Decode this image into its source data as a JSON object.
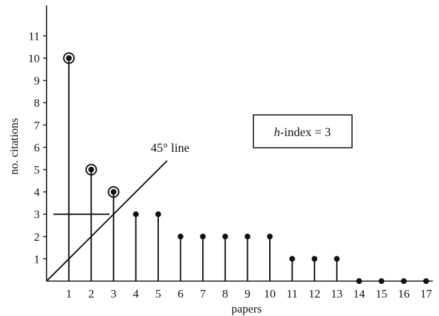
{
  "chart_data": {
    "type": "scatter",
    "title": "",
    "xlabel": "papers",
    "ylabel": "no. citations",
    "x": [
      1,
      2,
      3,
      4,
      5,
      6,
      7,
      8,
      9,
      10,
      11,
      12,
      13,
      14,
      15,
      16,
      17
    ],
    "y": [
      10,
      5,
      4,
      3,
      3,
      2,
      2,
      2,
      2,
      2,
      1,
      1,
      1,
      0,
      0,
      0,
      0
    ],
    "highlighted_x": [
      1,
      2,
      3
    ],
    "x_ticks": [
      "1",
      "2",
      "3",
      "4",
      "5",
      "6",
      "7",
      "8",
      "9",
      "10",
      "11",
      "12",
      "13",
      "14",
      "15",
      "16",
      "17"
    ],
    "y_ticks": [
      "1",
      "2",
      "3",
      "4",
      "5",
      "6",
      "7",
      "8",
      "9",
      "10",
      "11"
    ],
    "xlim": [
      0,
      17
    ],
    "ylim": [
      0,
      12
    ],
    "grid": false,
    "reference_line": {
      "label": "45° line",
      "x_end": 5.4
    },
    "h_marker": {
      "value": 3
    },
    "annotation_box": {
      "italic_part": "h",
      "text": "-index = 3"
    }
  }
}
